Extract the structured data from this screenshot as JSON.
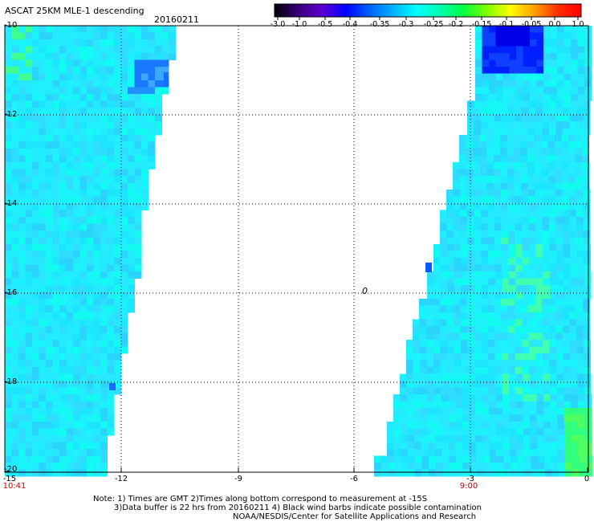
{
  "header": {
    "title": "ASCAT 25KM MLE-1 descending",
    "date": "20160211"
  },
  "colorbar": {
    "labels": [
      "-3.0",
      "-1.0",
      "-0.5",
      "-0.4",
      "-0.35",
      "-0.3",
      "-0.25",
      "-0.2",
      "-0.15",
      "-0.1",
      "-0.05",
      "0.0",
      "1.0"
    ],
    "colors": [
      "#000000",
      "#3a007a",
      "#5c00d0",
      "#0000ff",
      "#0060ff",
      "#00b0ff",
      "#00ffff",
      "#00ffb0",
      "#00ff40",
      "#80ff00",
      "#ffff00",
      "#ffa000",
      "#ff3000",
      "#ff0000"
    ]
  },
  "axes": {
    "y_ticks": [
      "-10",
      "-12",
      "-14",
      "-16",
      "-18",
      "-20"
    ],
    "x_ticks": [
      "-15",
      "-12",
      "-9",
      "-6",
      "-3",
      "0"
    ],
    "time_labels": [
      "10:41",
      "9:00"
    ]
  },
  "marker": {
    "label": "0"
  },
  "notes": {
    "line1": "Note: 1) Times are GMT 2)Times along bottom correspond to measurement at -15S",
    "line2": "3)Data buffer is 22 hrs from 20160211 4) Black wind barbs indicate possible contamination",
    "line3": "NOAA/NESDIS/Center for Satellite Applications and Research"
  },
  "map_data": {
    "lon_range": [
      -15,
      0
    ],
    "lat_range": [
      -20,
      -10
    ],
    "swaths": [
      {
        "name": "west-swath",
        "approx_value": -0.27
      },
      {
        "name": "east-swath",
        "approx_value": -0.27
      }
    ],
    "grid": "dotted"
  }
}
